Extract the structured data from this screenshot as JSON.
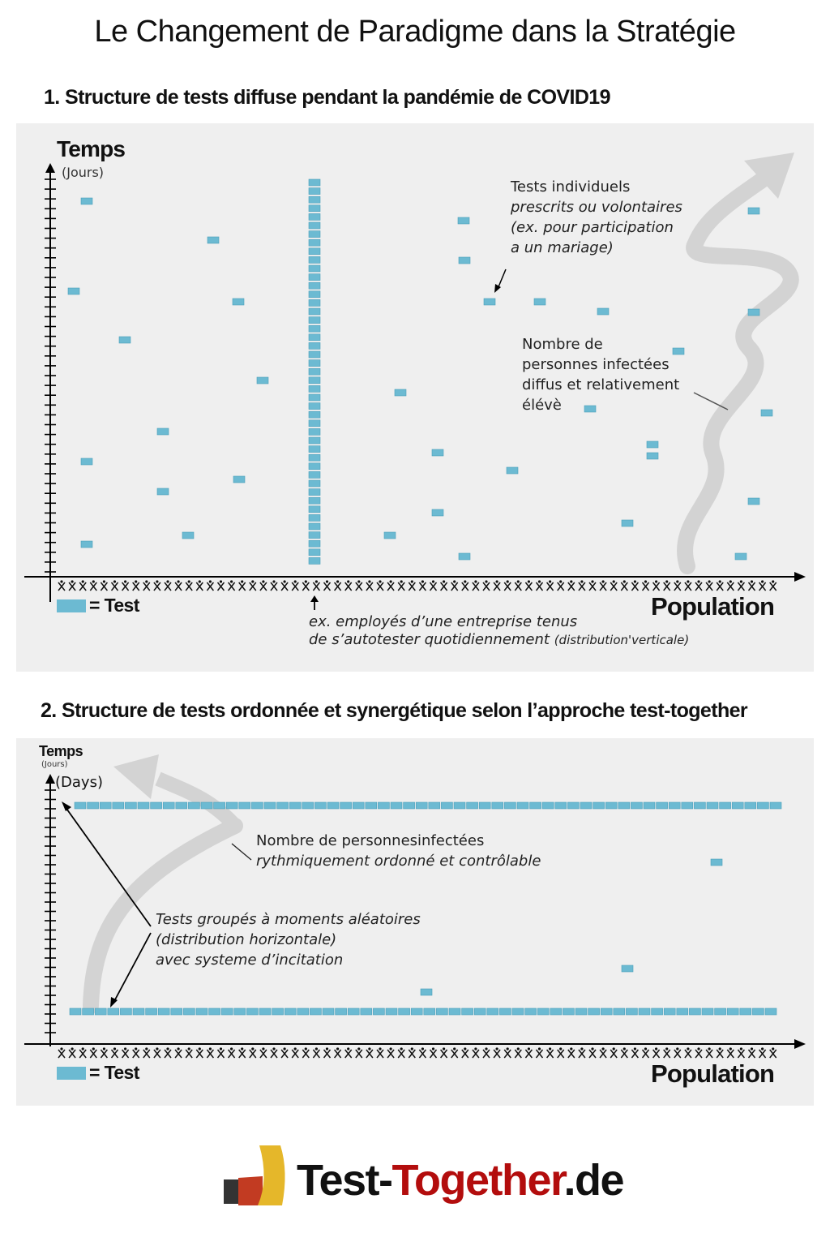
{
  "title": "Le Changement de Paradigme dans la Stratégie",
  "colors": {
    "test": "#6cbad2",
    "test_border": "#4a9fba",
    "panel": "#efefef",
    "arrow": "#d3d3d3",
    "logo_red": "#b30d0d"
  },
  "section1": {
    "heading": "1. Structure de tests diffuse pendant la pandémie de COVID19",
    "y_label": "Temps",
    "y_unit": "(Jours)",
    "x_label": "Population",
    "legend": "= Test",
    "note_individual": [
      "Tests individuels",
      "prescrits ou volontaires",
      "(ex. pour participation",
      "a un mariage)"
    ],
    "note_infected": [
      "Nombre de",
      "personnes infectées",
      "diffus et relativement",
      "élévè"
    ],
    "note_employees_1": "ex. employés d’une entreprise tenus",
    "note_employees_2": "de s’autotester quotidiennement",
    "note_employees_3": "(distribution'verticale)",
    "icons": [
      "person-icon",
      "arrow-up-icon",
      "trend-arrow-icon"
    ]
  },
  "section2": {
    "heading": "2. Structure de tests ordonnée et synergétique selon l’approche test-together",
    "y_label": "Temps",
    "y_unit": "(Jours)",
    "y_unit_en": "(Days)",
    "x_label": "Population",
    "legend": "= Test",
    "note_infected": [
      "Nombre de personnesinfectées",
      "rythmiquement ordonné et contrôlable"
    ],
    "note_grouped": [
      "Tests groupés à moments aléatoires",
      "(distribution horizontale)",
      "avec systeme d’incitation"
    ]
  },
  "logo": {
    "part1": "Test-",
    "part2": "Together",
    "part3": ".de"
  }
}
